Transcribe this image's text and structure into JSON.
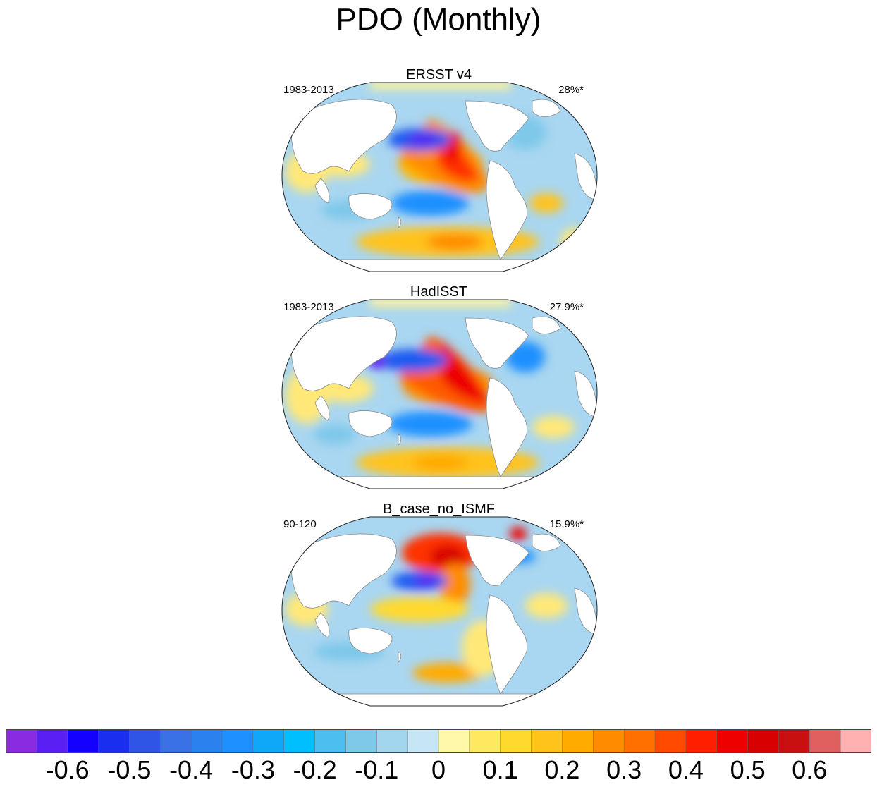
{
  "title": "PDO (Monthly)",
  "colors": {
    "bins": [
      "#8a2be2",
      "#5a1ff2",
      "#1400ff",
      "#1a2ef0",
      "#2f55e6",
      "#3a71e4",
      "#2b82ee",
      "#1e90ff",
      "#0fa7f8",
      "#00bfff",
      "#4cbff0",
      "#7ec8ea",
      "#a2d5ee",
      "#c6e6f5",
      "#fff8a8",
      "#ffe960",
      "#ffd92e",
      "#ffc31a",
      "#ffab00",
      "#ff8c00",
      "#ff7000",
      "#ff4a00",
      "#ff1f00",
      "#ee0000",
      "#d80000",
      "#c81010",
      "#e06060",
      "#ffb0b0"
    ],
    "land": "#ffffff",
    "coast": "#888888"
  },
  "chart_data": [
    {
      "type": "heatmap",
      "title": "ERSST v4",
      "period": "1983-2013",
      "variance": "28%*",
      "projection": "Robinson",
      "center_longitude": 180
    },
    {
      "type": "heatmap",
      "title": "HadISST",
      "period": "1983-2013",
      "variance": "27.9%*",
      "projection": "Robinson",
      "center_longitude": 180
    },
    {
      "type": "heatmap",
      "title": "B_case_no_ISMF",
      "period": "90-120",
      "variance": "15.9%*",
      "projection": "Robinson",
      "center_longitude": 180
    }
  ],
  "colorbar": {
    "levels": [
      -0.65,
      -0.6,
      -0.55,
      -0.5,
      -0.45,
      -0.4,
      -0.35,
      -0.3,
      -0.25,
      -0.2,
      -0.15,
      -0.1,
      -0.05,
      0,
      0.05,
      0.1,
      0.15,
      0.2,
      0.25,
      0.3,
      0.35,
      0.4,
      0.45,
      0.5,
      0.55,
      0.6,
      0.65
    ],
    "labels": [
      "-0.6",
      "-0.5",
      "-0.4",
      "-0.3",
      "-0.2",
      "-0.1",
      "0",
      "0.1",
      "0.2",
      "0.3",
      "0.4",
      "0.5",
      "0.6"
    ],
    "label_boundary_index": [
      2,
      4,
      6,
      8,
      10,
      12,
      14,
      16,
      18,
      20,
      22,
      24,
      26
    ]
  }
}
